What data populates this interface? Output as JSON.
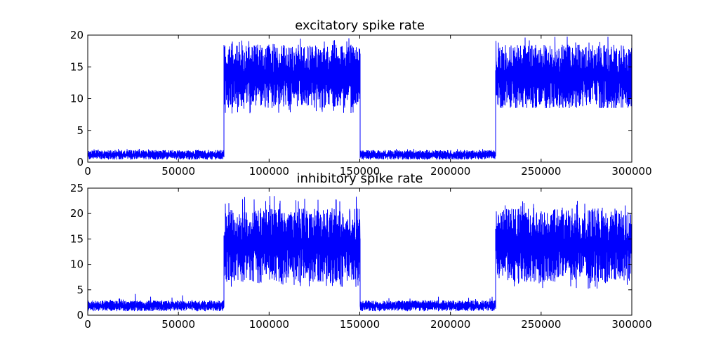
{
  "chart_data": [
    {
      "type": "line",
      "title": "excitatory spike rate",
      "xlabel": "",
      "ylabel": "",
      "xlim": [
        0,
        300000
      ],
      "ylim": [
        0,
        20
      ],
      "xticks": [
        0,
        50000,
        100000,
        150000,
        200000,
        250000,
        300000
      ],
      "yticks": [
        0,
        5,
        10,
        15,
        20
      ],
      "grid": false,
      "color": "#0000ff",
      "segments": [
        {
          "x_start": 0,
          "x_end": 75000,
          "y_min": 0.4,
          "y_max": 1.9,
          "y_peak": 2.1
        },
        {
          "x_start": 75000,
          "x_end": 150000,
          "y_min": 8.5,
          "y_max": 18.5,
          "y_peak": 19.6,
          "y_trough": 7.6
        },
        {
          "x_start": 150000,
          "x_end": 225000,
          "y_min": 0.4,
          "y_max": 1.9,
          "y_peak": 2.1
        },
        {
          "x_start": 225000,
          "x_end": 300000,
          "y_min": 8.5,
          "y_max": 18.5,
          "y_peak": 19.8,
          "y_trough": 8.6
        }
      ]
    },
    {
      "type": "line",
      "title": "inhibitory spike rate",
      "xlabel": "",
      "ylabel": "",
      "xlim": [
        0,
        300000
      ],
      "ylim": [
        0,
        25
      ],
      "xticks": [
        0,
        50000,
        100000,
        150000,
        200000,
        250000,
        300000
      ],
      "yticks": [
        0,
        5,
        10,
        15,
        20,
        25
      ],
      "grid": false,
      "color": "#0000ff",
      "segments": [
        {
          "x_start": 0,
          "x_end": 75000,
          "y_min": 0.8,
          "y_max": 2.9,
          "y_peak": 4.5
        },
        {
          "x_start": 75000,
          "x_end": 150000,
          "y_min": 6.5,
          "y_max": 21.0,
          "y_peak": 23.5,
          "y_trough": 5.5
        },
        {
          "x_start": 150000,
          "x_end": 225000,
          "y_min": 0.8,
          "y_max": 2.9,
          "y_peak": 3.8
        },
        {
          "x_start": 225000,
          "x_end": 300000,
          "y_min": 6.5,
          "y_max": 21.0,
          "y_peak": 22.5,
          "y_trough": 5.2
        }
      ]
    }
  ]
}
